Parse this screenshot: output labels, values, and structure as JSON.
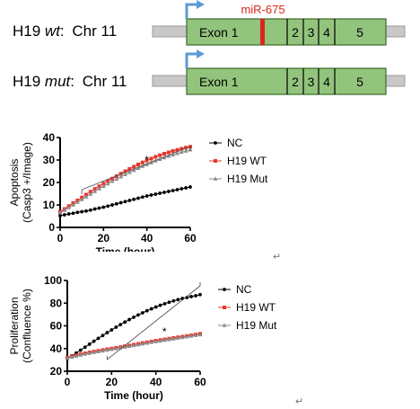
{
  "genes": [
    {
      "name": "H19",
      "variant": "wt",
      "chromosome": "Chr 11",
      "exons": [
        "Exon 1",
        "2",
        "3",
        "4",
        "5"
      ],
      "mirna": "miR-675",
      "mirna_site": true
    },
    {
      "name": "H19",
      "variant": "mut",
      "chromosome": "Chr 11",
      "exons": [
        "Exon 1",
        "2",
        "3",
        "4",
        "5"
      ],
      "mirna_site": false
    }
  ],
  "colors": {
    "exon_fill": "#93c47d",
    "exon_border": "#3a6a2a",
    "chromosome_bar": "#c8c8c8",
    "promoter_arrow": "#5b9bd5",
    "mirna": "#d9261c",
    "nc": "#000000",
    "wt": "#e8352b",
    "mut": "#8c8c8c"
  },
  "return_marks": [
    "↵",
    "↵"
  ],
  "chart_data": [
    {
      "type": "line",
      "title": "",
      "ylabel": "Apoptosis (Casp3 +/Image)",
      "ylabel_lines": [
        "Apoptosis",
        "(Casp3 +/Image)"
      ],
      "xlabel": "Time (hour)",
      "xlim": [
        0,
        60
      ],
      "ylim": [
        0,
        40
      ],
      "xticks": [
        0,
        20,
        40,
        60
      ],
      "yticks": [
        0,
        10,
        20,
        30,
        40
      ],
      "legend": "right",
      "significance": "*",
      "significance_bracket": [
        10,
        60
      ],
      "x": [
        0,
        2,
        4,
        6,
        8,
        10,
        12,
        14,
        16,
        18,
        20,
        22,
        24,
        26,
        28,
        30,
        32,
        34,
        36,
        38,
        40,
        42,
        44,
        46,
        48,
        50,
        52,
        54,
        56,
        58,
        60
      ],
      "series": [
        {
          "name": "NC",
          "color_key": "nc",
          "marker": "circle",
          "values": [
            5.2,
            5.6,
            6.0,
            6.3,
            6.7,
            7.0,
            7.3,
            7.7,
            8.2,
            8.6,
            9.0,
            9.5,
            10.0,
            10.5,
            11.0,
            11.5,
            12.0,
            12.5,
            13.0,
            13.5,
            14.0,
            14.4,
            14.8,
            15.2,
            15.6,
            16.0,
            16.4,
            16.8,
            17.2,
            17.6,
            18.0
          ]
        },
        {
          "name": "H19 WT",
          "color_key": "wt",
          "marker": "square",
          "values": [
            7.0,
            8.2,
            9.5,
            10.8,
            12.0,
            13.3,
            14.6,
            15.9,
            17.1,
            18.3,
            19.5,
            20.6,
            21.7,
            22.8,
            23.9,
            25.0,
            26.0,
            27.0,
            28.0,
            28.9,
            29.8,
            30.6,
            31.4,
            32.1,
            32.8,
            33.4,
            34.0,
            34.5,
            35.0,
            35.5,
            35.9
          ]
        },
        {
          "name": "H19 Mut",
          "color_key": "mut",
          "marker": "triangle",
          "values": [
            6.5,
            7.6,
            8.8,
            10.0,
            11.2,
            12.4,
            13.6,
            14.8,
            16.0,
            17.2,
            18.3,
            19.4,
            20.5,
            21.5,
            22.5,
            23.5,
            24.5,
            25.4,
            26.3,
            27.2,
            28.0,
            28.8,
            29.6,
            30.3,
            31.0,
            31.7,
            32.3,
            32.9,
            33.5,
            34.0,
            34.5
          ]
        }
      ]
    },
    {
      "type": "line",
      "title": "",
      "ylabel": "Proliferation (Confluence %)",
      "ylabel_lines": [
        "Proliferation",
        "(Confluence %)"
      ],
      "xlabel": "Time (hour)",
      "xlim": [
        0,
        60
      ],
      "ylim": [
        20,
        100
      ],
      "xticks": [
        0,
        20,
        40,
        60
      ],
      "yticks": [
        20,
        40,
        60,
        80,
        100
      ],
      "legend": "right",
      "significance": "*",
      "significance_bracket": [
        18,
        60
      ],
      "x": [
        0,
        2,
        4,
        6,
        8,
        10,
        12,
        14,
        16,
        18,
        20,
        22,
        24,
        26,
        28,
        30,
        32,
        34,
        36,
        38,
        40,
        42,
        44,
        46,
        48,
        50,
        52,
        54,
        56,
        58,
        60
      ],
      "series": [
        {
          "name": "NC",
          "color_key": "nc",
          "marker": "circle",
          "values": [
            31.0,
            33.5,
            36.0,
            38.6,
            41.2,
            43.8,
            46.4,
            49.0,
            51.5,
            54.0,
            56.4,
            58.8,
            61.1,
            63.3,
            65.5,
            67.6,
            69.6,
            71.5,
            73.3,
            75.0,
            76.6,
            78.1,
            79.5,
            80.8,
            82.0,
            83.1,
            84.1,
            85.0,
            85.8,
            86.5,
            87.5
          ]
        },
        {
          "name": "H19 WT",
          "color_key": "wt",
          "marker": "square",
          "values": [
            32.0,
            33.0,
            34.0,
            35.0,
            35.8,
            36.6,
            37.3,
            38.0,
            38.7,
            39.4,
            40.0,
            40.6,
            41.3,
            42.0,
            42.7,
            43.4,
            44.1,
            44.8,
            45.5,
            46.2,
            46.9,
            47.5,
            48.1,
            48.7,
            49.3,
            49.9,
            50.5,
            51.1,
            51.7,
            52.3,
            53.0
          ]
        },
        {
          "name": "H19 Mut",
          "color_key": "mut",
          "marker": "triangle",
          "values": [
            31.5,
            32.5,
            33.4,
            34.3,
            35.1,
            35.9,
            36.6,
            37.3,
            38.0,
            38.7,
            39.3,
            39.9,
            40.6,
            41.3,
            42.0,
            42.7,
            43.4,
            44.1,
            44.8,
            45.5,
            46.2,
            46.8,
            47.4,
            48.0,
            48.6,
            49.2,
            49.8,
            50.4,
            51.0,
            51.6,
            52.2
          ]
        }
      ]
    }
  ]
}
